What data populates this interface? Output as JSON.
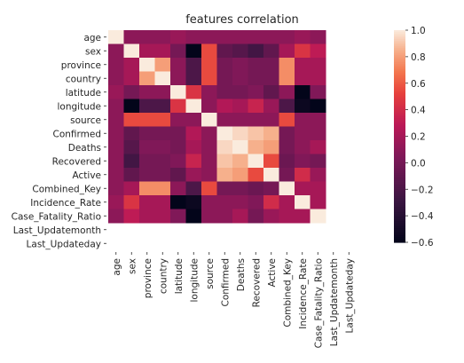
{
  "chart_data": {
    "type": "heatmap",
    "title": "features correlation",
    "labels": [
      "age",
      "sex",
      "province",
      "country",
      "latitude",
      "longitude",
      "source",
      "Confirmed",
      "Deaths",
      "Recovered",
      "Active",
      "Combined_Key",
      "Incidence_Rate",
      "Case_Fatality_Ratio",
      "Last_Updatemonth",
      "Last_Updateday"
    ],
    "matrix": [
      [
        1.0,
        0.1,
        0.1,
        0.1,
        0.15,
        0.1,
        0.1,
        0.1,
        0.1,
        0.1,
        0.1,
        0.1,
        0.15,
        0.1,
        null,
        null
      ],
      [
        0.1,
        1.0,
        0.2,
        0.2,
        0.0,
        -0.6,
        0.55,
        -0.1,
        -0.15,
        -0.25,
        -0.1,
        0.2,
        0.45,
        0.3,
        null,
        null
      ],
      [
        0.1,
        0.2,
        1.0,
        0.8,
        0.1,
        -0.2,
        0.55,
        0.0,
        0.05,
        0.0,
        0.0,
        0.75,
        0.2,
        0.2,
        null,
        null
      ],
      [
        0.1,
        0.2,
        0.8,
        1.0,
        0.1,
        -0.2,
        0.55,
        0.0,
        0.05,
        0.0,
        0.0,
        0.75,
        0.2,
        0.2,
        null,
        null
      ],
      [
        0.15,
        0.0,
        0.1,
        0.1,
        1.0,
        0.45,
        0.1,
        0.0,
        0.0,
        0.05,
        -0.1,
        0.1,
        -0.6,
        0.05,
        null,
        null
      ],
      [
        0.1,
        -0.6,
        -0.2,
        -0.2,
        0.45,
        1.0,
        0.1,
        0.25,
        0.2,
        0.35,
        0.15,
        -0.2,
        -0.55,
        -0.6,
        null,
        null
      ],
      [
        0.1,
        0.55,
        0.55,
        0.55,
        0.1,
        0.1,
        1.0,
        0.1,
        0.1,
        0.1,
        0.1,
        0.55,
        0.1,
        0.1,
        null,
        null
      ],
      [
        0.1,
        -0.1,
        0.0,
        0.0,
        0.0,
        0.25,
        0.1,
        1.0,
        0.95,
        0.9,
        0.85,
        0.0,
        0.1,
        0.1,
        null,
        null
      ],
      [
        0.1,
        -0.15,
        0.05,
        0.05,
        0.0,
        0.2,
        0.1,
        0.95,
        1.0,
        0.85,
        0.8,
        0.0,
        0.1,
        0.2,
        null,
        null
      ],
      [
        0.1,
        -0.25,
        0.0,
        0.0,
        0.05,
        0.35,
        0.1,
        0.9,
        0.85,
        1.0,
        0.55,
        -0.05,
        0.05,
        0.0,
        null,
        null
      ],
      [
        0.1,
        -0.1,
        0.0,
        0.0,
        -0.1,
        0.15,
        0.1,
        0.85,
        0.8,
        0.55,
        1.0,
        0.0,
        0.4,
        0.15,
        null,
        null
      ],
      [
        0.1,
        0.2,
        0.75,
        0.75,
        0.1,
        -0.2,
        0.55,
        0.0,
        0.0,
        -0.05,
        0.0,
        1.0,
        0.2,
        0.2,
        null,
        null
      ],
      [
        0.15,
        0.45,
        0.2,
        0.2,
        -0.6,
        -0.55,
        0.1,
        0.1,
        0.1,
        0.05,
        0.4,
        0.2,
        1.0,
        0.2,
        null,
        null
      ],
      [
        0.1,
        0.3,
        0.2,
        0.2,
        0.05,
        -0.6,
        0.1,
        0.1,
        0.2,
        0.0,
        0.15,
        0.2,
        0.2,
        1.0,
        null,
        null
      ],
      [
        null,
        null,
        null,
        null,
        null,
        null,
        null,
        null,
        null,
        null,
        null,
        null,
        null,
        null,
        null,
        null
      ],
      [
        null,
        null,
        null,
        null,
        null,
        null,
        null,
        null,
        null,
        null,
        null,
        null,
        null,
        null,
        null,
        null
      ]
    ],
    "vmin": -0.6,
    "vmax": 1.0,
    "colorbar_ticks": [
      "1.0",
      "0.8",
      "0.6",
      "0.4",
      "0.2",
      "0.0",
      "−0.2",
      "−0.4",
      "−0.6"
    ],
    "colormap": "rocket"
  }
}
